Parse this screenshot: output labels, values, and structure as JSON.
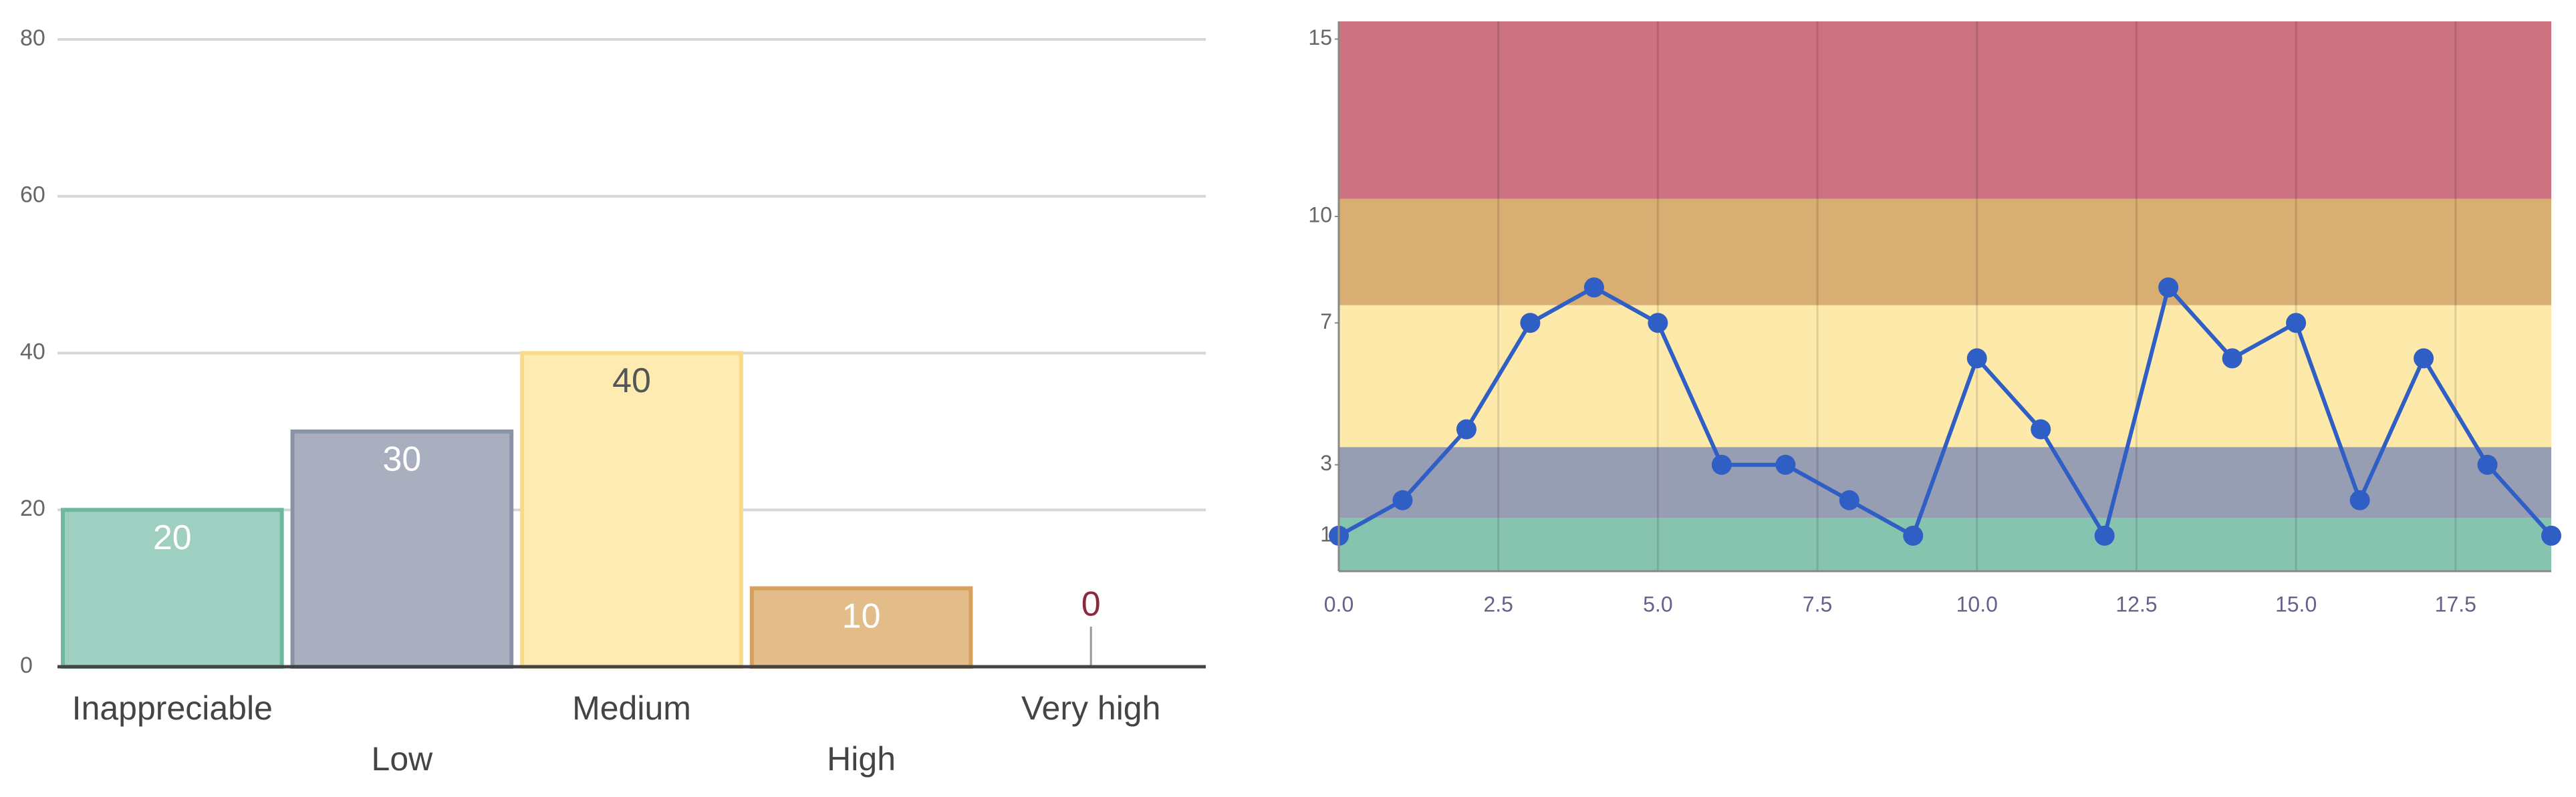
{
  "chart_data": [
    {
      "type": "bar",
      "categories": [
        "Inappreciable",
        "Low",
        "Medium",
        "High",
        "Very high"
      ],
      "values": [
        20,
        30,
        40,
        10,
        0
      ],
      "colors": [
        "#9fcfc0",
        "#a9afbf",
        "#fdebb2",
        "#e2bd89",
        "#c45b6b"
      ],
      "border_colors": [
        "#6fb89f",
        "#8a92a7",
        "#f7da8a",
        "#d4a15e",
        "#9e3a4c"
      ],
      "label_colors": [
        "#ffffff",
        "#ffffff",
        "#555555",
        "#ffffff",
        "#8b2a3c"
      ],
      "ylim": [
        0,
        80
      ],
      "yticks": [
        0,
        20,
        40,
        60,
        80
      ],
      "grid": true
    },
    {
      "type": "line",
      "x": [
        0,
        1,
        2,
        3,
        4,
        5,
        6,
        7,
        8,
        9,
        10,
        11,
        12,
        13,
        14,
        15,
        16,
        17,
        18,
        19
      ],
      "series": [
        {
          "color": "#2f5fc4",
          "values": [
            1,
            2,
            4,
            7,
            8,
            7,
            3,
            3,
            2,
            1,
            6,
            4,
            1,
            8,
            6,
            7,
            2,
            6,
            3,
            1
          ]
        }
      ],
      "bands": [
        {
          "from": 0,
          "to": 1.5,
          "color": "#86c4b0"
        },
        {
          "from": 1.5,
          "to": 3.5,
          "color": "#979db2"
        },
        {
          "from": 3.5,
          "to": 7.5,
          "color": "#fde9a9"
        },
        {
          "from": 7.5,
          "to": 10.5,
          "color": "#d8ae72"
        },
        {
          "from": 10.5,
          "to": 15.5,
          "color": "#cd7281"
        }
      ],
      "xlim": [
        0,
        19
      ],
      "ylim": [
        0,
        15.5
      ],
      "xticks": [
        {
          "value": 0,
          "label": "0.0"
        },
        2.5,
        {
          "value": 5,
          "label": "5.0"
        },
        7.5,
        {
          "value": 10,
          "label": "10.0"
        },
        12.5,
        {
          "value": 15,
          "label": "15.0"
        },
        17.5
      ],
      "yticks": [
        1,
        3,
        7,
        10,
        15
      ],
      "grid": true
    }
  ]
}
